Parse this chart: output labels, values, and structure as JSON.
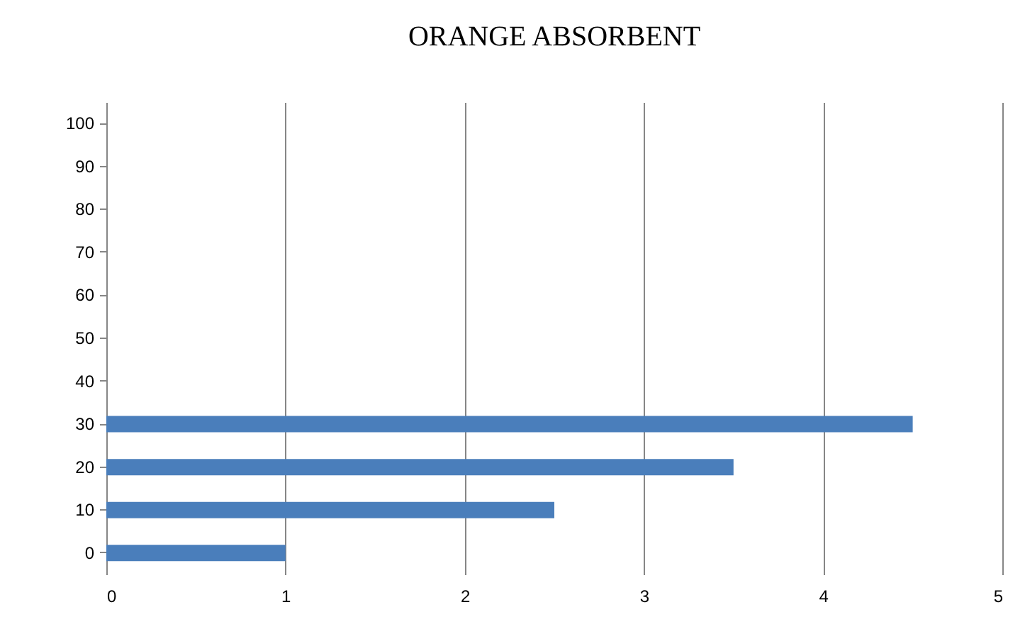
{
  "chart_data": {
    "type": "bar",
    "orientation": "horizontal",
    "title": "ORANGE ABSORBENT",
    "categories": [
      "100",
      "90",
      "80",
      "70",
      "60",
      "50",
      "40",
      "30",
      "20",
      "10",
      "0"
    ],
    "values": [
      null,
      null,
      null,
      null,
      null,
      null,
      null,
      4.5,
      3.5,
      2.5,
      1
    ],
    "color": "#4a7ebb",
    "xlim": [
      0,
      5
    ],
    "xticks": [
      0,
      1,
      2,
      3,
      4,
      5
    ],
    "grid": "x"
  }
}
